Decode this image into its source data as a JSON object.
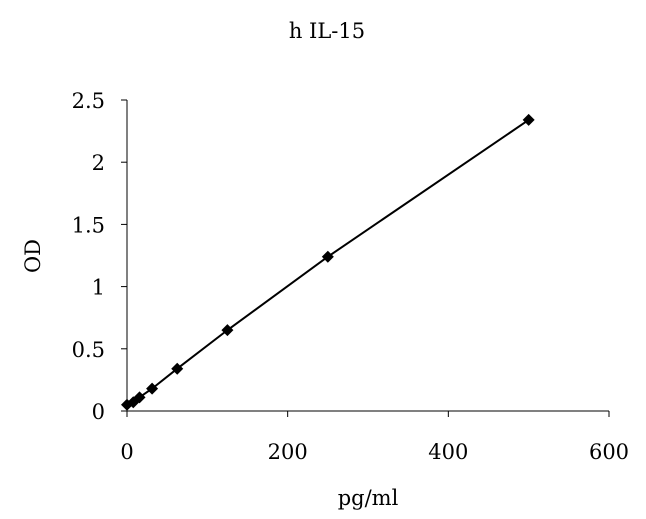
{
  "chart_data": {
    "type": "line",
    "title": "h IL-15",
    "xlabel": "pg/ml",
    "ylabel": "OD",
    "xlim": [
      0,
      600
    ],
    "ylim": [
      0,
      2.5
    ],
    "xticks": [
      "0",
      "200",
      "400",
      "600"
    ],
    "yticks": [
      "0",
      "0.5",
      "1",
      "1.5",
      "2",
      "2.5"
    ],
    "grid": false,
    "marker": "diamond",
    "color": "#000000",
    "x": [
      0,
      7.8,
      15.6,
      31.25,
      62.5,
      125,
      250,
      500
    ],
    "y": [
      0.05,
      0.07,
      0.11,
      0.18,
      0.34,
      0.65,
      1.24,
      2.34
    ]
  }
}
